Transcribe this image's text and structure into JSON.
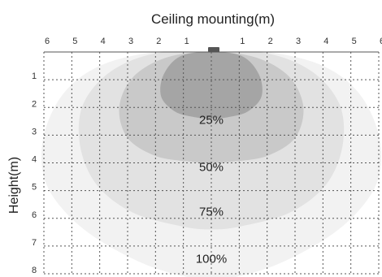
{
  "chart_data": {
    "type": "area",
    "title": "Ceiling mounting(m)",
    "xlabel": "",
    "ylabel": "Height(m)",
    "x_tick_labels": [
      "6",
      "5",
      "4",
      "3",
      "2",
      "1",
      "",
      "1",
      "2",
      "3",
      "4",
      "5",
      "6"
    ],
    "y_tick_labels": [
      "1",
      "2",
      "3",
      "4",
      "5",
      "6",
      "7",
      "8"
    ],
    "xlim": [
      -6,
      6
    ],
    "ylim": [
      0,
      8
    ],
    "grid": true,
    "colors": {
      "grid": "#555555",
      "fixture": "#555555",
      "zone_100": "#f2f2f2",
      "zone_75": "#e2e2e2",
      "zone_50": "#c9c9c9",
      "zone_25": "#a5a5a5"
    },
    "series": [
      {
        "name": "100%",
        "label_position": [
          0,
          7.6
        ],
        "outline": [
          [
            0,
            0
          ],
          [
            -2,
            0
          ],
          [
            -4,
            0.5
          ],
          [
            -5.3,
            1.5
          ],
          [
            -6,
            3
          ],
          [
            -6,
            4.5
          ],
          [
            -5.3,
            5.7
          ],
          [
            -4,
            6.8
          ],
          [
            -2,
            7.8
          ],
          [
            0,
            8.2
          ],
          [
            2,
            7.8
          ],
          [
            4,
            6.8
          ],
          [
            5.3,
            5.7
          ],
          [
            6,
            4.5
          ],
          [
            6,
            3
          ],
          [
            5.3,
            1.5
          ],
          [
            4,
            0.5
          ],
          [
            2,
            0
          ]
        ]
      },
      {
        "name": "75%",
        "label_position": [
          0,
          5.9
        ],
        "outline": [
          [
            0,
            0
          ],
          [
            -2,
            0.05
          ],
          [
            -3.6,
            0.7
          ],
          [
            -4.6,
            1.9
          ],
          [
            -4.7,
            3.4
          ],
          [
            -4.1,
            4.8
          ],
          [
            -2.8,
            5.8
          ],
          [
            -1,
            6.3
          ],
          [
            0,
            6.4
          ],
          [
            1,
            6.3
          ],
          [
            2.8,
            5.8
          ],
          [
            4.1,
            4.8
          ],
          [
            4.7,
            3.4
          ],
          [
            4.6,
            1.9
          ],
          [
            3.6,
            0.7
          ],
          [
            2,
            0.05
          ]
        ]
      },
      {
        "name": "50%",
        "label_position": [
          0,
          4.3
        ],
        "outline": [
          [
            0,
            0
          ],
          [
            -1.6,
            0.2
          ],
          [
            -2.8,
            0.9
          ],
          [
            -3.3,
            2
          ],
          [
            -3,
            3.1
          ],
          [
            -2,
            3.75
          ],
          [
            -0.8,
            3.95
          ],
          [
            0,
            4.0
          ],
          [
            0.8,
            3.95
          ],
          [
            2,
            3.75
          ],
          [
            3,
            3.1
          ],
          [
            3.3,
            2
          ],
          [
            2.8,
            0.9
          ],
          [
            1.6,
            0.2
          ]
        ]
      },
      {
        "name": "25%",
        "label_position": [
          0,
          2.6
        ],
        "outline": [
          [
            0,
            0
          ],
          [
            -1.1,
            0.15
          ],
          [
            -1.7,
            0.8
          ],
          [
            -1.8,
            1.6
          ],
          [
            -1.3,
            2.15
          ],
          [
            -0.6,
            2.35
          ],
          [
            0,
            2.4
          ],
          [
            0.6,
            2.35
          ],
          [
            1.3,
            2.15
          ],
          [
            1.8,
            1.6
          ],
          [
            1.7,
            0.8
          ],
          [
            1.1,
            0.15
          ]
        ]
      }
    ]
  }
}
